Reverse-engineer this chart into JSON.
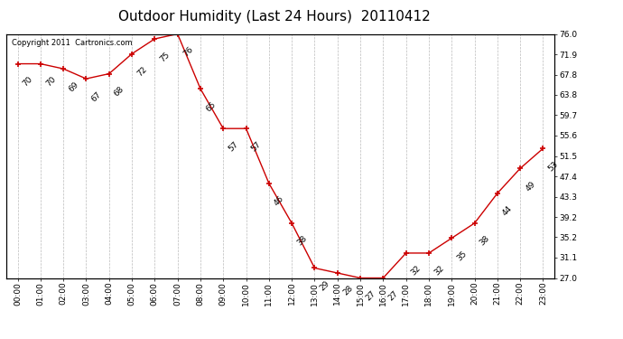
{
  "title": "Outdoor Humidity (Last 24 Hours)  20110412",
  "copyright_text": "Copyright 2011  Cartronics.com",
  "hours": [
    "00:00",
    "01:00",
    "02:00",
    "03:00",
    "04:00",
    "05:00",
    "06:00",
    "07:00",
    "08:00",
    "09:00",
    "10:00",
    "11:00",
    "12:00",
    "13:00",
    "14:00",
    "15:00",
    "16:00",
    "17:00",
    "18:00",
    "19:00",
    "20:00",
    "21:00",
    "22:00",
    "23:00"
  ],
  "values": [
    70,
    70,
    69,
    67,
    68,
    72,
    75,
    76,
    65,
    57,
    57,
    46,
    38,
    29,
    28,
    27,
    27,
    32,
    32,
    35,
    38,
    44,
    49,
    53
  ],
  "ylim": [
    27.0,
    76.0
  ],
  "yticks_right": [
    76.0,
    71.9,
    67.8,
    63.8,
    59.7,
    55.6,
    51.5,
    47.4,
    43.3,
    39.2,
    35.2,
    31.1,
    27.0
  ],
  "line_color": "#cc0000",
  "marker_color": "#cc0000",
  "bg_color": "#ffffff",
  "grid_color": "#bbbbbb",
  "title_fontsize": 11,
  "label_fontsize": 6.5,
  "annotation_fontsize": 6.5,
  "copyright_fontsize": 6
}
